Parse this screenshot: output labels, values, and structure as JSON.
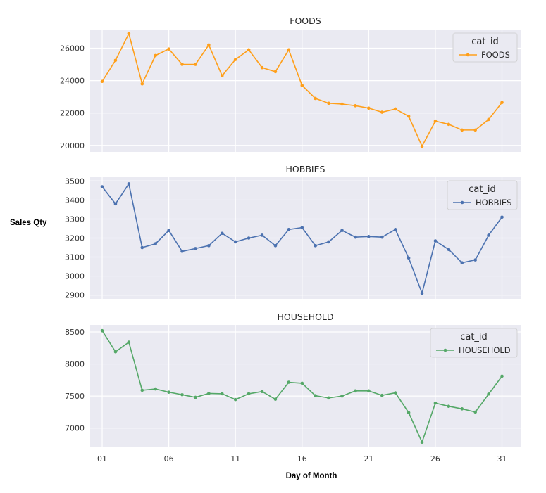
{
  "ylabel": "Sales Qty",
  "xlabel": "Day of Month",
  "legend_title": "cat_id",
  "x_ticks": [
    "01",
    "06",
    "11",
    "16",
    "21",
    "26",
    "31"
  ],
  "chart_data": [
    {
      "type": "line",
      "title": "FOODS",
      "color": "#ff9f1a",
      "x": [
        1,
        2,
        3,
        4,
        5,
        6,
        7,
        8,
        9,
        10,
        11,
        12,
        13,
        14,
        15,
        16,
        17,
        18,
        19,
        20,
        21,
        22,
        23,
        24,
        25,
        26,
        27,
        28,
        29,
        30,
        31
      ],
      "series": [
        {
          "name": "FOODS",
          "values": [
            23950,
            25250,
            26900,
            23800,
            25550,
            25950,
            25000,
            25000,
            26200,
            24300,
            25300,
            25900,
            24800,
            24550,
            25900,
            23700,
            22900,
            22600,
            22550,
            22450,
            22300,
            22050,
            22250,
            21800,
            19950,
            21500,
            21300,
            20950,
            20950,
            21600,
            22650
          ]
        }
      ],
      "yticks": [
        20000,
        22000,
        24000,
        26000
      ],
      "ylim": [
        19600,
        27150
      ],
      "xlim": [
        0.1,
        32.4
      ],
      "legend_position": "top-right",
      "grid": true
    },
    {
      "type": "line",
      "title": "HOBBIES",
      "color": "#4c72b0",
      "x": [
        1,
        2,
        3,
        4,
        5,
        6,
        7,
        8,
        9,
        10,
        11,
        12,
        13,
        14,
        15,
        16,
        17,
        18,
        19,
        20,
        21,
        22,
        23,
        24,
        25,
        26,
        27,
        28,
        29,
        30,
        31
      ],
      "series": [
        {
          "name": "HOBBIES",
          "values": [
            3470,
            3380,
            3485,
            3150,
            3170,
            3240,
            3130,
            3145,
            3160,
            3225,
            3180,
            3200,
            3215,
            3160,
            3245,
            3255,
            3160,
            3180,
            3240,
            3205,
            3208,
            3205,
            3245,
            3095,
            2910,
            3185,
            3140,
            3070,
            3085,
            3215,
            3310
          ]
        }
      ],
      "yticks": [
        2900,
        3000,
        3100,
        3200,
        3300,
        3400,
        3500
      ],
      "ylim": [
        2880,
        3520
      ],
      "xlim": [
        0.1,
        32.4
      ],
      "legend_position": "top-right",
      "grid": true
    },
    {
      "type": "line",
      "title": "HOUSEHOLD",
      "color": "#55a868",
      "x": [
        1,
        2,
        3,
        4,
        5,
        6,
        7,
        8,
        9,
        10,
        11,
        12,
        13,
        14,
        15,
        16,
        17,
        18,
        19,
        20,
        21,
        22,
        23,
        24,
        25,
        26,
        27,
        28,
        29,
        30,
        31
      ],
      "series": [
        {
          "name": "HOUSEHOLD",
          "values": [
            8520,
            8190,
            8340,
            7590,
            7610,
            7560,
            7520,
            7480,
            7540,
            7535,
            7445,
            7535,
            7570,
            7450,
            7715,
            7700,
            7505,
            7470,
            7500,
            7580,
            7580,
            7510,
            7550,
            7240,
            6780,
            7390,
            7340,
            7300,
            7250,
            7530,
            7810
          ]
        }
      ],
      "yticks": [
        7000,
        7500,
        8000,
        8500
      ],
      "ylim": [
        6700,
        8610
      ],
      "xlim": [
        0.1,
        32.4
      ],
      "legend_position": "top-right",
      "grid": true
    }
  ]
}
